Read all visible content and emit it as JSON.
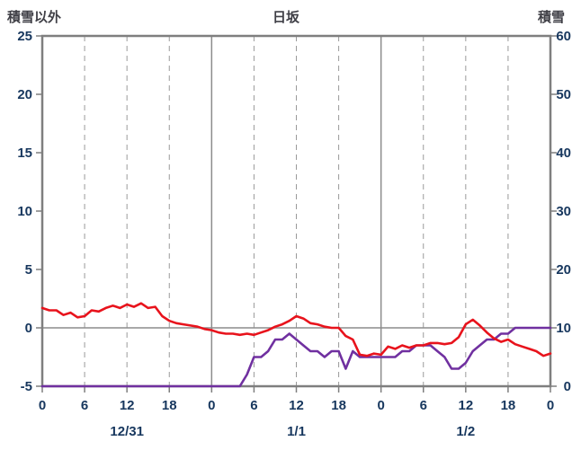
{
  "chart_data": {
    "type": "line",
    "title": "日坂",
    "left_axis": {
      "title": "積雪以外",
      "min": -5,
      "max": 25,
      "ticks": [
        25,
        20,
        15,
        10,
        5,
        0,
        -5
      ]
    },
    "right_axis": {
      "title": "積雪",
      "min": 0,
      "max": 60,
      "ticks": [
        60,
        50,
        40,
        30,
        20,
        10,
        0
      ]
    },
    "x_axis": {
      "min_hour": 0,
      "max_hour": 72,
      "tick_hours": [
        0,
        6,
        12,
        18,
        24,
        30,
        36,
        42,
        48,
        54,
        60,
        66,
        72
      ],
      "tick_labels": [
        "0",
        "6",
        "12",
        "18",
        "0",
        "6",
        "12",
        "18",
        "0",
        "6",
        "12",
        "18",
        "0"
      ],
      "dashed_grid_hours": [
        6,
        12,
        18,
        30,
        36,
        42,
        54,
        60,
        66
      ],
      "solid_grid_hours": [
        24,
        48
      ],
      "day_labels": [
        {
          "label": "12/31",
          "hour": 12
        },
        {
          "label": "1/1",
          "hour": 36
        },
        {
          "label": "1/2",
          "hour": 60
        }
      ]
    },
    "zero_line_left_value": 0,
    "grid": true,
    "legend": "none",
    "colors": {
      "temperature": "#e8131c",
      "snow_depth": "#7030a0",
      "border": "#7f7f7f",
      "grid_dashed": "#9a9a9a",
      "grid_solid": "#8c8c8c",
      "tick_text": "#17375e",
      "header_text": "#3f3f46"
    },
    "series": [
      {
        "name": "snow-depth",
        "axis": "right",
        "color": "#7030a0",
        "values": [
          0,
          0,
          0,
          0,
          0,
          0,
          0,
          0,
          0,
          0,
          0,
          0,
          0,
          0,
          0,
          0,
          0,
          0,
          0,
          0,
          0,
          0,
          0,
          0,
          0,
          0,
          0,
          0,
          0,
          2,
          5,
          5,
          6,
          8,
          8,
          9,
          8,
          7,
          6,
          6,
          5,
          6,
          6,
          3,
          6,
          5,
          5,
          5,
          5,
          5,
          5,
          6,
          6,
          7,
          7,
          7,
          6,
          5,
          3,
          3,
          4,
          6,
          7,
          8,
          8,
          9,
          9,
          10,
          10,
          10,
          10,
          10,
          10
        ]
      },
      {
        "name": "temperature",
        "axis": "left",
        "color": "#e8131c",
        "values": [
          1.7,
          1.5,
          1.5,
          1.1,
          1.3,
          0.9,
          1.0,
          1.5,
          1.4,
          1.7,
          1.9,
          1.7,
          2.0,
          1.8,
          2.1,
          1.7,
          1.8,
          1.0,
          0.6,
          0.4,
          0.3,
          0.2,
          0.1,
          -0.1,
          -0.2,
          -0.4,
          -0.5,
          -0.5,
          -0.6,
          -0.5,
          -0.6,
          -0.4,
          -0.2,
          0.1,
          0.3,
          0.6,
          1.0,
          0.8,
          0.4,
          0.3,
          0.1,
          0.0,
          0.0,
          -0.7,
          -1.0,
          -2.3,
          -2.4,
          -2.2,
          -2.3,
          -1.6,
          -1.8,
          -1.5,
          -1.7,
          -1.5,
          -1.5,
          -1.3,
          -1.3,
          -1.4,
          -1.3,
          -0.8,
          0.3,
          0.7,
          0.2,
          -0.4,
          -0.9,
          -1.2,
          -1.0,
          -1.4,
          -1.6,
          -1.8,
          -2.0,
          -2.4,
          -2.2
        ]
      }
    ]
  }
}
